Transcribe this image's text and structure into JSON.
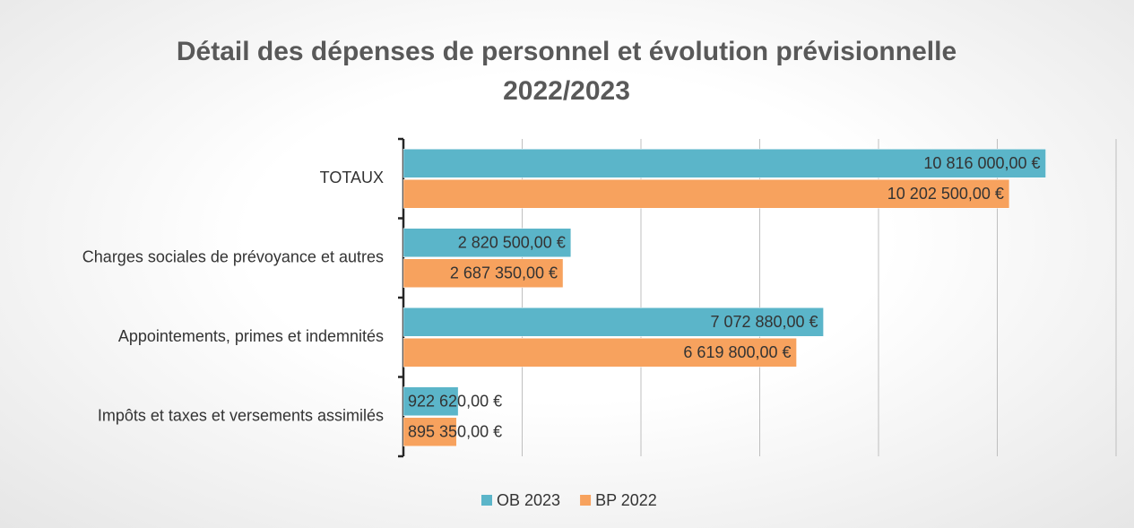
{
  "chart_data": {
    "type": "bar",
    "orientation": "horizontal",
    "title": "Détail des dépenses de personnel et évolution prévisionnelle 2022/2023",
    "categories": [
      "TOTAUX",
      "Charges sociales de prévoyance et autres",
      "Appointements, primes et indemnités",
      "Impôts et taxes et versements assimilés"
    ],
    "series": [
      {
        "name": "OB 2023",
        "color": "#5bb5c9",
        "values": [
          10816000,
          2820500,
          7072880,
          922620
        ],
        "value_labels": [
          "10 816 000,00 €",
          "2 820 500,00 €",
          "7 072 880,00 €",
          "922 620,00 €"
        ]
      },
      {
        "name": "BP 2022",
        "color": "#f7a25e",
        "values": [
          10202500,
          2687350,
          6619800,
          895350
        ],
        "value_labels": [
          "10 202 500,00 €",
          "2 687 350,00 €",
          "6 619 800,00 €",
          "895 350,00 €"
        ]
      }
    ],
    "xlim": [
      0,
      12000000
    ],
    "xticks": [
      0,
      2000000,
      4000000,
      6000000,
      8000000,
      10000000,
      12000000
    ],
    "grid": true,
    "legend": "bottom"
  }
}
